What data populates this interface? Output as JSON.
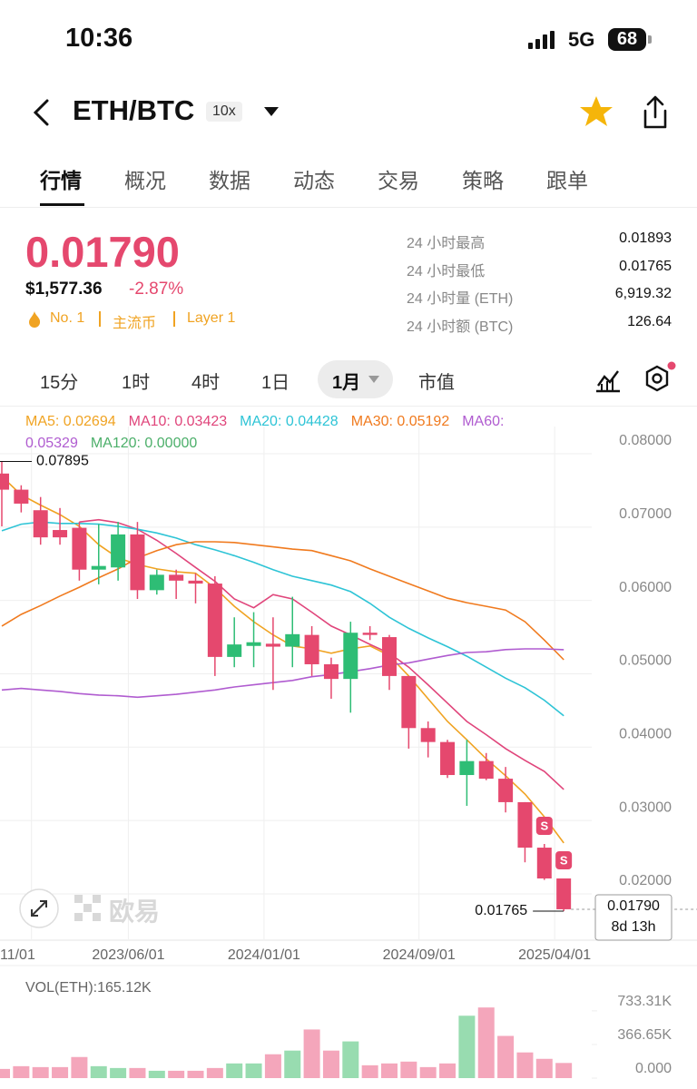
{
  "status_bar": {
    "time": "10:36",
    "network": "5G",
    "battery": "68"
  },
  "header": {
    "pair": "ETH/BTC",
    "leverage": "10x"
  },
  "tabs": [
    "行情",
    "概况",
    "数据",
    "动态",
    "交易",
    "策略",
    "跟单"
  ],
  "price": {
    "last": "0.01790",
    "usd": "$1,577.36",
    "change": "-2.87%",
    "tags": [
      "No. 1",
      "主流币",
      "Layer 1"
    ]
  },
  "stats": [
    {
      "label": "24 小时最高",
      "value": "0.01893"
    },
    {
      "label": "24 小时最低",
      "value": "0.01765"
    },
    {
      "label": "24 小时量 (ETH)",
      "value": "6,919.32"
    },
    {
      "label": "24 小时额 (BTC)",
      "value": "126.64"
    }
  ],
  "intervals": [
    "15分",
    "1时",
    "4时",
    "1日",
    "1月",
    "市值"
  ],
  "watermark": "欧易",
  "chart_data": {
    "type": "candlestick",
    "categories": [
      null,
      null,
      "11/01",
      null,
      null,
      null,
      null,
      "2023/06/01",
      null,
      null,
      null,
      null,
      null,
      null,
      "2024/01/01",
      null,
      null,
      null,
      null,
      null,
      null,
      null,
      "2024/09/01",
      null,
      null,
      null,
      null,
      null,
      null,
      "2025/04/01"
    ],
    "open": [
      0.0773,
      0.0751,
      0.0723,
      0.0696,
      0.0699,
      0.0642,
      0.0645,
      0.069,
      0.0614,
      0.0635,
      0.0627,
      0.0623,
      0.0523,
      0.0538,
      0.0541,
      0.0537,
      0.0553,
      0.0513,
      0.0493,
      0.0556,
      0.055,
      0.0497,
      0.0426,
      0.0407,
      0.0362,
      0.0381,
      0.0357,
      0.0325,
      0.0263,
      0.0221
    ],
    "high": [
      0.07895,
      0.0757,
      0.0741,
      0.0726,
      0.0707,
      0.0704,
      0.0707,
      0.0707,
      0.0642,
      0.0642,
      0.0637,
      0.0633,
      0.0577,
      0.0584,
      0.0577,
      0.0605,
      0.0565,
      0.0522,
      0.0571,
      0.0565,
      0.0553,
      0.0497,
      0.0435,
      0.041,
      0.041,
      0.0392,
      0.0373,
      0.0325,
      0.0268,
      0.0221
    ],
    "low": [
      0.0701,
      0.072,
      0.0676,
      0.0676,
      0.0627,
      0.0622,
      0.0627,
      0.0602,
      0.0608,
      0.0602,
      0.0596,
      0.0497,
      0.0509,
      0.0509,
      0.0478,
      0.0509,
      0.0497,
      0.0466,
      0.0447,
      0.0546,
      0.0478,
      0.0398,
      0.0386,
      0.0358,
      0.032,
      0.0355,
      0.0311,
      0.0243,
      0.0219,
      0.01765
    ],
    "close": [
      0.0751,
      0.0732,
      0.0686,
      0.0686,
      0.0642,
      0.0647,
      0.069,
      0.0614,
      0.0635,
      0.0627,
      0.0623,
      0.0523,
      0.054,
      0.0543,
      0.0537,
      0.0554,
      0.0513,
      0.0493,
      0.0556,
      0.0553,
      0.0497,
      0.0426,
      0.0407,
      0.0362,
      0.0381,
      0.0357,
      0.0325,
      0.0263,
      0.0221,
      0.0179
    ],
    "up_color": "#2ebd75",
    "down_color": "#e5486e",
    "series": [
      {
        "label": "MA5: 0.02694",
        "color": "#f0a322",
        "values": [
          0.0769,
          0.0744,
          0.073,
          0.0717,
          0.0701,
          0.0676,
          0.0658,
          0.0649,
          0.0643,
          0.0639,
          0.0637,
          0.0617,
          0.0592,
          0.0571,
          0.0553,
          0.0538,
          0.0534,
          0.0528,
          0.0534,
          0.0538,
          0.0525,
          0.0497,
          0.0466,
          0.0435,
          0.041,
          0.0384,
          0.0361,
          0.0336,
          0.0305,
          0.02694
        ]
      },
      {
        "label": "MA10: 0.03423",
        "color": "#e0457b",
        "values": [
          null,
          null,
          null,
          null,
          0.0707,
          0.071,
          0.0706,
          0.0697,
          0.0682,
          0.0664,
          0.0645,
          0.0626,
          0.0602,
          0.059,
          0.0608,
          0.0602,
          0.0584,
          0.0565,
          0.0553,
          0.054,
          0.0528,
          0.0509,
          0.0485,
          0.046,
          0.0435,
          0.0417,
          0.0398,
          0.0382,
          0.0367,
          0.03423
        ]
      },
      {
        "label": "MA20: 0.04428",
        "color": "#2ec4d6",
        "values": [
          0.0695,
          0.0704,
          0.0707,
          0.0705,
          0.0705,
          0.0704,
          0.0701,
          0.0697,
          0.0692,
          0.0685,
          0.0676,
          0.0669,
          0.0661,
          0.0652,
          0.0642,
          0.0633,
          0.0627,
          0.0621,
          0.0612,
          0.0596,
          0.0577,
          0.0562,
          0.0549,
          0.0537,
          0.0524,
          0.0509,
          0.0494,
          0.0481,
          0.0464,
          0.04428
        ]
      },
      {
        "label": "MA30: 0.05192",
        "color": "#f07a1e",
        "values": [
          0.0565,
          0.0581,
          0.0593,
          0.0606,
          0.0618,
          0.0631,
          0.0643,
          0.0658,
          0.0668,
          0.0676,
          0.068,
          0.068,
          0.0679,
          0.0676,
          0.0673,
          0.067,
          0.0668,
          0.0661,
          0.0654,
          0.0643,
          0.0633,
          0.0623,
          0.0613,
          0.0603,
          0.0597,
          0.0592,
          0.0587,
          0.0571,
          0.0546,
          0.05192
        ]
      },
      {
        "label": "MA60: 0.05329",
        "color": "#b05cd0",
        "values": [
          0.0478,
          0.048,
          0.0478,
          0.0476,
          0.0473,
          0.0471,
          0.047,
          0.0468,
          0.047,
          0.0472,
          0.0475,
          0.0478,
          0.0482,
          0.0485,
          0.0488,
          0.0491,
          0.0496,
          0.0499,
          0.0503,
          0.0507,
          0.0512,
          0.0515,
          0.052,
          0.0525,
          0.0529,
          0.053,
          0.0533,
          0.0534,
          0.0534,
          0.05329
        ]
      },
      {
        "label": "MA120: 0.00000",
        "color": "#4caf6a"
      }
    ],
    "ylim": [
      0.01381,
      0.08371
    ],
    "yticks": [
      {
        "value": 0.02,
        "label": "0.02000"
      },
      {
        "value": 0.03,
        "label": "0.03000"
      },
      {
        "value": 0.04,
        "label": "0.04000"
      },
      {
        "value": 0.05,
        "label": "0.05000"
      },
      {
        "value": 0.06,
        "label": "0.06000"
      },
      {
        "value": 0.07,
        "label": "0.07000"
      },
      {
        "value": 0.08,
        "label": "0.08000"
      }
    ],
    "grid": true,
    "high_label": "0.07895",
    "low_label": "0.01765",
    "last_label": "0.01790",
    "countdown": "8d 13h",
    "signals": [
      null,
      null,
      null,
      null,
      null,
      null,
      null,
      null,
      null,
      null,
      null,
      null,
      null,
      null,
      null,
      null,
      null,
      null,
      null,
      null,
      null,
      null,
      null,
      null,
      null,
      null,
      null,
      null,
      "S",
      "S"
    ],
    "volume": {
      "label": "VOL(ETH):165.12K",
      "up_color": "#98dcb0",
      "down_color": "#f4a6bb",
      "values": [
        100000,
        130000,
        120000,
        120000,
        230000,
        130000,
        110000,
        110000,
        80000,
        80000,
        80000,
        110000,
        160000,
        160000,
        260000,
        300000,
        530000,
        300000,
        400000,
        140000,
        160000,
        180000,
        120000,
        160000,
        680000,
        770000,
        460000,
        280000,
        210000,
        165120
      ],
      "ylim": [
        0,
        920000
      ],
      "yticks": [
        {
          "value": 0,
          "label": "0.000"
        },
        {
          "value": 366650,
          "label": "366.65K"
        },
        {
          "value": 733310,
          "label": "733.31K"
        }
      ]
    }
  }
}
